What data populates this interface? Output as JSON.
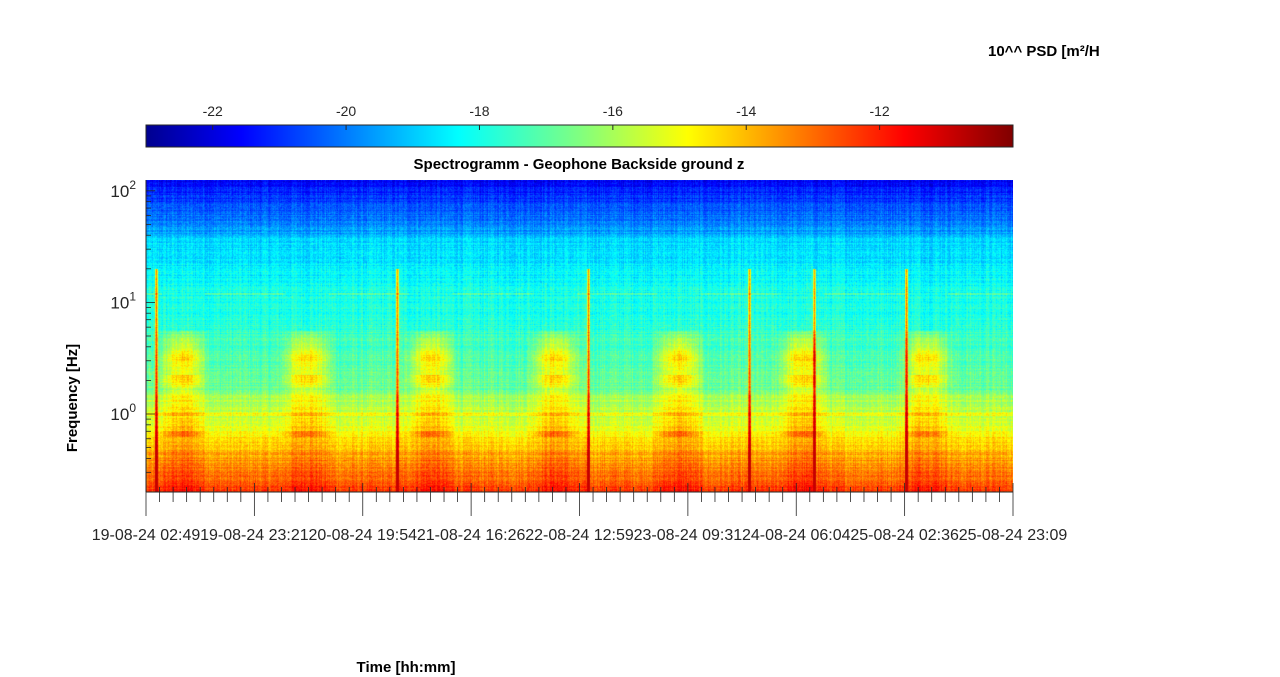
{
  "chart_data": {
    "type": "heatmap",
    "title": "Spectrogramm - Geophone Backside ground z",
    "xlabel": "Time [hh:mm]",
    "ylabel": "Frequency [Hz]",
    "y_scale": "log",
    "ylim": [
      0.2,
      125
    ],
    "x_tick_labels": [
      "19-08-24 02:49",
      "19-08-24 23:21",
      "20-08-24 19:54",
      "21-08-24 16:26",
      "22-08-24 12:59",
      "23-08-24 09:31",
      "24-08-24 06:04",
      "25-08-24 02:36",
      "25-08-24 23:09"
    ],
    "y_ticks": [
      {
        "value": 1,
        "base": "10",
        "exp": "0"
      },
      {
        "value": 10,
        "base": "10",
        "exp": "1"
      },
      {
        "value": 100,
        "base": "10",
        "exp": "2"
      }
    ],
    "colorbar": {
      "label": "10^^ PSD [m²/H",
      "range": [
        -23,
        -10
      ],
      "ticks": [
        "-22",
        "-20",
        "-18",
        "-16",
        "-14",
        "-12"
      ],
      "tick_values": [
        -22,
        -20,
        -18,
        -16,
        -14,
        -12
      ],
      "colormap": "jet",
      "location": "top"
    },
    "features": {
      "daily_activity_days": 7,
      "transient_spikes": 6,
      "noise_band_hz": [
        2,
        5
      ],
      "line_hz": [
        1.0,
        12
      ]
    }
  }
}
